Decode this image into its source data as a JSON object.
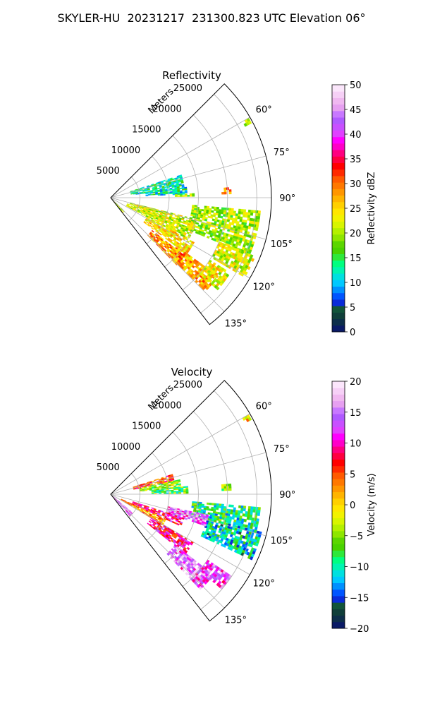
{
  "figure_title": "SKYLER-HU  20231217  231300.823 UTC Elevation 06°",
  "chart_data": [
    {
      "type": "heatmap",
      "subtype": "polar-sector",
      "title": "Reflectivity",
      "radial_axis_label": "Meters",
      "radial_ticks": [
        5000,
        10000,
        15000,
        20000,
        25000
      ],
      "radial_tick_labels": [
        "5000",
        "10000",
        "15000",
        "20000",
        "25000"
      ],
      "radial_range": [
        0,
        27500
      ],
      "azimuth_range": [
        45,
        142
      ],
      "azimuth_ticks": [
        60,
        75,
        90,
        105,
        120,
        135
      ],
      "azimuth_tick_labels": [
        "60°",
        "75°",
        "90°",
        "105°",
        "120°",
        "135°"
      ],
      "grid": true,
      "colorbar": {
        "label": "Reflectivity dBZ",
        "range": [
          0,
          50
        ],
        "ticks": [
          0,
          5,
          10,
          15,
          20,
          25,
          30,
          35,
          40,
          45,
          50
        ],
        "tick_labels": [
          "0",
          "5",
          "10",
          "15",
          "20",
          "25",
          "30",
          "35",
          "40",
          "45",
          "50"
        ],
        "colors": [
          "#0a1a66",
          "#0d2e4a",
          "#103f3a",
          "#12543a",
          "#0a2bd9",
          "#0055ff",
          "#0090ff",
          "#00c8ff",
          "#00e0e0",
          "#00f5b0",
          "#00ff80",
          "#2ee83a",
          "#49d200",
          "#5cd600",
          "#8ee600",
          "#b4f000",
          "#d8f500",
          "#f2f200",
          "#ffe600",
          "#ffd000",
          "#ffb400",
          "#ff9600",
          "#ff7800",
          "#ff5a00",
          "#ff2a00",
          "#ff0000",
          "#ff0040",
          "#ff0080",
          "#ff00c8",
          "#ff00ff",
          "#e040ff",
          "#c850ff",
          "#b05aff",
          "#c878ff",
          "#e6a0f0",
          "#f0b8f0",
          "#f6d0f6",
          "#fbe6fb"
        ]
      },
      "echo_regions": [
        {
          "az": [
            72,
            82
          ],
          "r": [
            3500,
            12500
          ],
          "value": 13
        },
        {
          "az": [
            82,
            87
          ],
          "r": [
            6000,
            13000
          ],
          "value": 12
        },
        {
          "az": [
            87,
            89
          ],
          "r": [
            11000,
            14000
          ],
          "value": 20
        },
        {
          "az": [
            85,
            88
          ],
          "r": [
            19000,
            20500
          ],
          "value": 30
        },
        {
          "az": [
            60,
            62
          ],
          "r": [
            26000,
            27000
          ],
          "value": 22
        },
        {
          "az": [
            95,
            112
          ],
          "r": [
            14000,
            25500
          ],
          "value": 20
        },
        {
          "az": [
            112,
            120
          ],
          "r": [
            20000,
            26500
          ],
          "value": 22
        },
        {
          "az": [
            104,
            118
          ],
          "r": [
            3000,
            15000
          ],
          "value": 22
        },
        {
          "az": [
            118,
            126
          ],
          "r": [
            7000,
            16000
          ],
          "value": 25
        },
        {
          "az": [
            126,
            134
          ],
          "r": [
            14000,
            22500
          ],
          "value": 27
        },
        {
          "az": [
            122,
            130
          ],
          "r": [
            20000,
            24000
          ],
          "value": 23
        },
        {
          "az": [
            128,
            135
          ],
          "r": [
            9000,
            16000
          ],
          "value": 28
        },
        {
          "az": [
            134,
            140
          ],
          "r": [
            0,
            3000
          ],
          "value": 20
        }
      ]
    },
    {
      "type": "heatmap",
      "subtype": "polar-sector",
      "title": "Velocity",
      "radial_axis_label": "Meters",
      "radial_ticks": [
        5000,
        10000,
        15000,
        20000,
        25000
      ],
      "radial_tick_labels": [
        "5000",
        "10000",
        "15000",
        "20000",
        "25000"
      ],
      "radial_range": [
        0,
        27500
      ],
      "azimuth_range": [
        45,
        142
      ],
      "azimuth_ticks": [
        60,
        75,
        90,
        105,
        120,
        135
      ],
      "azimuth_tick_labels": [
        "60°",
        "75°",
        "90°",
        "105°",
        "120°",
        "135°"
      ],
      "grid": true,
      "colorbar": {
        "label": "Velocity (m/s)",
        "range": [
          -20,
          20
        ],
        "ticks": [
          -20,
          -15,
          -10,
          -5,
          0,
          5,
          10,
          15,
          20
        ],
        "tick_labels": [
          "−20",
          "−15",
          "−10",
          "−5",
          "0",
          "5",
          "10",
          "15",
          "20"
        ],
        "colors": [
          "#0a1a66",
          "#0d2e4a",
          "#103f3a",
          "#12543a",
          "#0a2bd9",
          "#0055ff",
          "#0090ff",
          "#00c8ff",
          "#00e0e0",
          "#00f5b0",
          "#00ff80",
          "#2ee83a",
          "#49d200",
          "#5cd600",
          "#8ee600",
          "#b4f000",
          "#d8f500",
          "#f2f200",
          "#ffe600",
          "#ffd000",
          "#ffb400",
          "#ff9600",
          "#ff7800",
          "#ff5a00",
          "#ff2a00",
          "#ff0000",
          "#ff0040",
          "#ff0080",
          "#ff00c8",
          "#ff00ff",
          "#e040ff",
          "#c850ff",
          "#b05aff",
          "#c878ff",
          "#e6a0f0",
          "#f0b8f0",
          "#f6d0f6",
          "#fbe6fb"
        ]
      },
      "echo_regions": [
        {
          "az": [
            72,
            78
          ],
          "r": [
            4000,
            11000
          ],
          "value": 6
        },
        {
          "az": [
            78,
            84
          ],
          "r": [
            5000,
            12000
          ],
          "value": -4
        },
        {
          "az": [
            84,
            89
          ],
          "r": [
            7000,
            13000
          ],
          "value": -7
        },
        {
          "az": [
            85,
            88
          ],
          "r": [
            19000,
            20500
          ],
          "value": -6
        },
        {
          "az": [
            60,
            62
          ],
          "r": [
            26000,
            27000
          ],
          "value": 0
        },
        {
          "az": [
            95,
            104
          ],
          "r": [
            14000,
            25500
          ],
          "value": -9
        },
        {
          "az": [
            104,
            114
          ],
          "r": [
            17000,
            26500
          ],
          "value": -11
        },
        {
          "az": [
            102,
            108
          ],
          "r": [
            10000,
            17000
          ],
          "value": 14
        },
        {
          "az": [
            108,
            114
          ],
          "r": [
            4000,
            13000
          ],
          "value": 9
        },
        {
          "az": [
            114,
            120
          ],
          "r": [
            2000,
            10000
          ],
          "value": 3
        },
        {
          "az": [
            120,
            128
          ],
          "r": [
            8000,
            16000
          ],
          "value": 9
        },
        {
          "az": [
            128,
            136
          ],
          "r": [
            14000,
            22000
          ],
          "value": 14
        },
        {
          "az": [
            124,
            130
          ],
          "r": [
            20000,
            25000
          ],
          "value": 13
        },
        {
          "az": [
            130,
            138
          ],
          "r": [
            0,
            5000
          ],
          "value": 14
        }
      ]
    }
  ]
}
